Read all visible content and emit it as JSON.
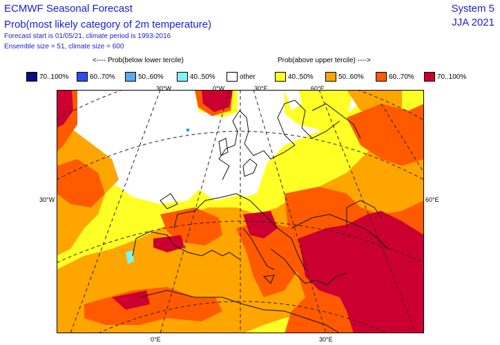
{
  "header": {
    "title": "ECMWF Seasonal Forecast",
    "subtitle": "Prob(most likely category of 2m temperature)",
    "forecast_info": "Forecast start is 01/05/21, climate period is 1993-2016",
    "ensemble_info": "Ensemble size = 51, climate size = 600",
    "system": "System 5",
    "season": "JJA 2021"
  },
  "legend": {
    "below_label": "<---- Prob(below lower tercile)",
    "above_label": "Prob(above upper tercile) ---->",
    "items": [
      {
        "label": "70..100%",
        "color": "#0a0a8a"
      },
      {
        "label": "60..70%",
        "color": "#2f4cf0"
      },
      {
        "label": "50..60%",
        "color": "#5aa8f0"
      },
      {
        "label": "40..50%",
        "color": "#7ef4f4"
      },
      {
        "label": "other",
        "color": "#ffffff"
      },
      {
        "label": "40..50%",
        "color": "#ffff26"
      },
      {
        "label": "50..60%",
        "color": "#ffa500"
      },
      {
        "label": "60..70%",
        "color": "#ff5a00"
      },
      {
        "label": "70..100%",
        "color": "#cc0030"
      }
    ]
  },
  "map": {
    "lon_labels": [
      "30°W",
      "0°W",
      "30°E",
      "60°E"
    ],
    "side_labels": [
      "30°W",
      "60°E"
    ],
    "bottom_labels": [
      "0°E",
      "30°E"
    ]
  }
}
